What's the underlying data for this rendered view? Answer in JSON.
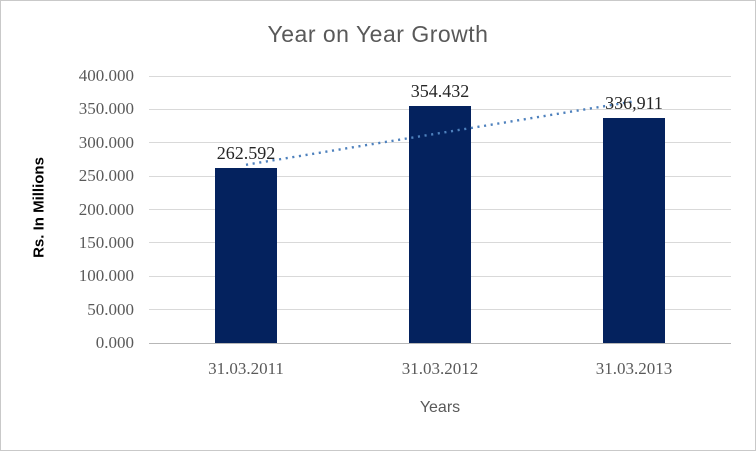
{
  "chart_data": {
    "type": "bar",
    "title": "Year on Year Growth",
    "xlabel": "Years",
    "ylabel": "Rs. In Millions",
    "categories": [
      "31.03.2011",
      "31.03.2012",
      "31.03.2013"
    ],
    "values": [
      262.592,
      354.432,
      336.911
    ],
    "data_labels": [
      "262.592",
      "354.432",
      "336,911"
    ],
    "ylim": [
      0,
      400
    ],
    "y_tick_step": 50,
    "y_tick_labels": [
      "0.000",
      "50.000",
      "100.000",
      "150.000",
      "200.000",
      "250.000",
      "300.000",
      "350.000",
      "400.000"
    ],
    "grid": true,
    "legend": "none",
    "bar_color": "#04225E",
    "gridline_color": "#d9d9d9",
    "trendline": {
      "style": "dotted",
      "color": "#4E81BD",
      "start_value": 267,
      "end_value": 362
    }
  }
}
